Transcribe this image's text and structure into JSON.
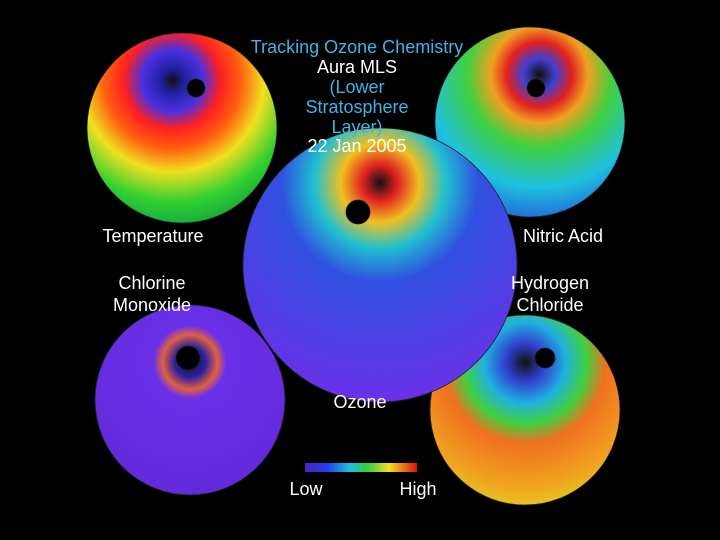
{
  "title": {
    "lines": [
      "Tracking Ozone Chemistry",
      "Aura MLS",
      "(Lower",
      "Stratosphere",
      "Layer)",
      "22 Jan 2005"
    ]
  },
  "panels": [
    {
      "label": [
        "Temperature"
      ]
    },
    {
      "label": [
        "Nitric Acid"
      ]
    },
    {
      "label": [
        "Chlorine",
        "Monoxide"
      ]
    },
    {
      "label": [
        "Hydrogen",
        "Chloride"
      ]
    },
    {
      "label": [
        "Ozone"
      ]
    }
  ],
  "legend": {
    "low": "Low",
    "high": "High"
  }
}
